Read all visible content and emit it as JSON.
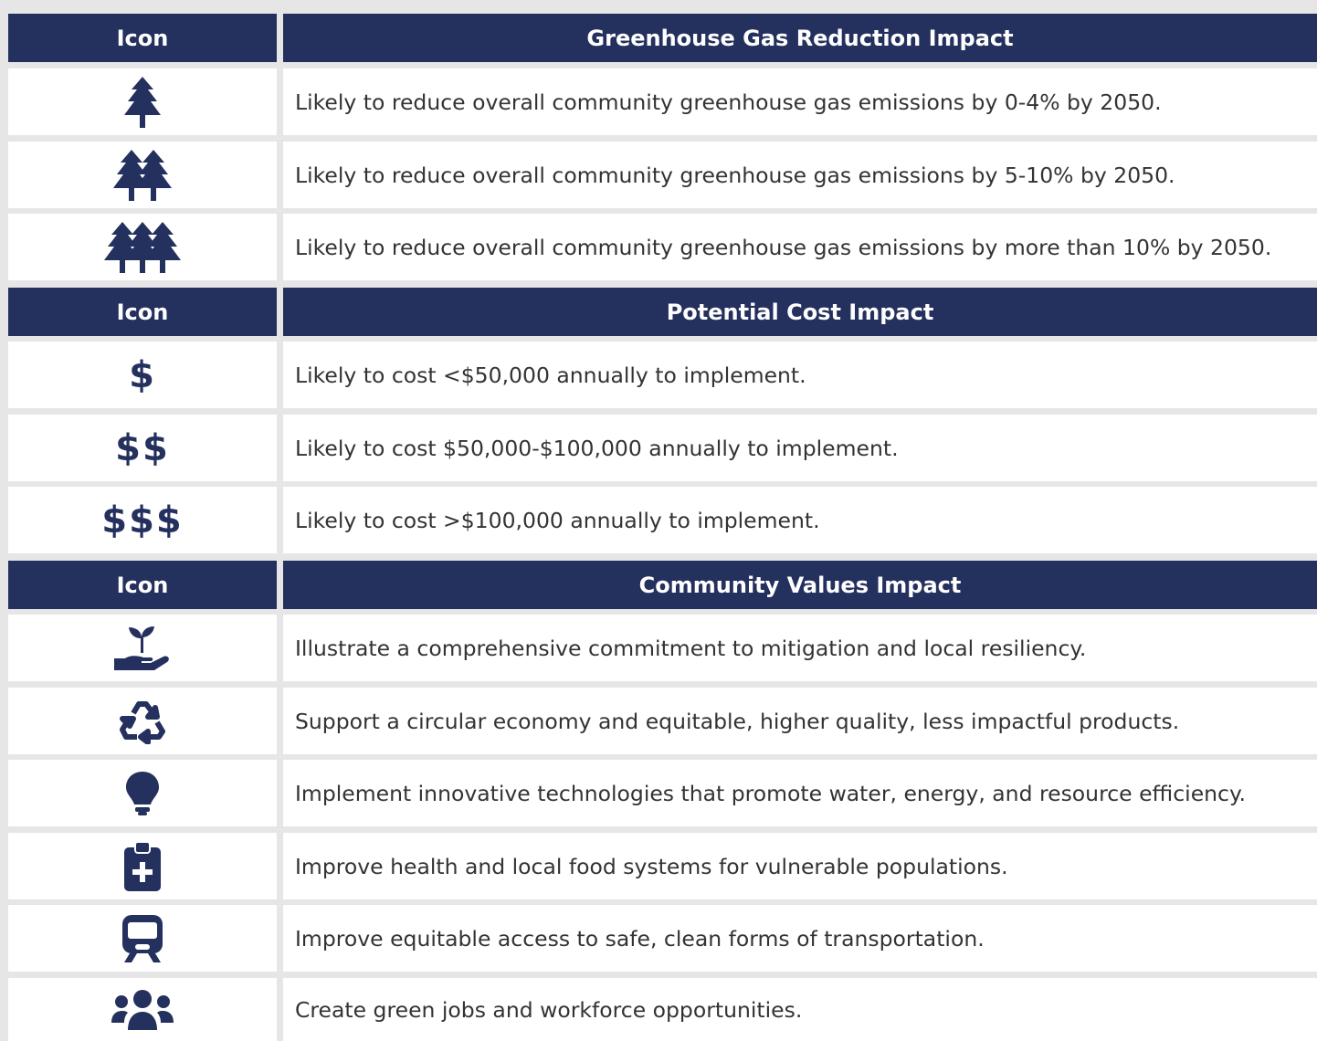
{
  "sections": [
    {
      "header": [
        "Icon",
        "Greenhouse Gas Reduction Impact"
      ],
      "rows": [
        {
          "description": "Likely to reduce overall community greenhouse gas emissions by 0-4% by 2050."
        },
        {
          "description": "Likely to reduce overall community greenhouse gas emissions by 5-10% by 2050."
        },
        {
          "description": "Likely to reduce overall community greenhouse gas emissions by more than 10% by 2050."
        }
      ]
    },
    {
      "header": [
        "Icon",
        "Potential Cost Impact"
      ],
      "rows": [
        {
          "icon": "$",
          "description": "Likely to cost <$50,000 annually to implement."
        },
        {
          "icon": "$$",
          "description": "Likely to cost $50,000-$100,000 annually to implement."
        },
        {
          "icon": "$$$",
          "description": "Likely to cost >$100,000 annually to implement."
        }
      ]
    },
    {
      "header": [
        "Icon",
        "Community Values Impact"
      ],
      "rows": [
        {
          "description": "Illustrate a comprehensive commitment to mitigation and local resiliency."
        },
        {
          "description": "Support a circular economy and equitable, higher quality, less impactful products."
        },
        {
          "description": "Implement innovative technologies that promote water, energy, and resource efficiency."
        },
        {
          "description": "Improve health and local food systems for vulnerable populations."
        },
        {
          "description": "Improve equitable access to safe, clean forms of transportation."
        },
        {
          "description": "Create green jobs and workforce opportunities."
        }
      ]
    }
  ]
}
